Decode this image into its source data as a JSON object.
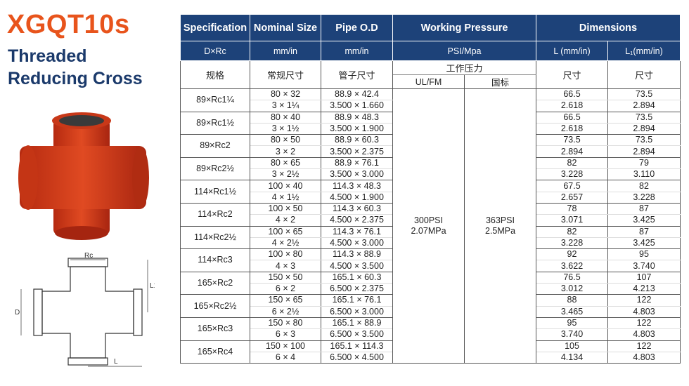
{
  "title": "XGQT10s",
  "subtitle_line1": "Threaded",
  "subtitle_line2": "Reducing Cross",
  "colors": {
    "accent": "#e8541c",
    "navy": "#1d4279",
    "product": "#d63a1a"
  },
  "drawing_labels": {
    "rc": "Rc",
    "l1": "L1",
    "d": "D",
    "l": "L"
  },
  "header": {
    "specification": "Specification",
    "nominal": "Nominal Size",
    "pipe": "Pipe O.D",
    "pressure": "Working Pressure",
    "dimensions": "Dimensions",
    "spec_unit": "D×Rc",
    "nominal_unit": "mm/in",
    "pipe_unit": "mm/in",
    "pressure_unit": "PSI/Mpa",
    "l_unit": "L (mm/in)",
    "l1_unit": "L₁(mm/in)",
    "spec_cn": "规格",
    "nominal_cn": "常规尺寸",
    "pipe_cn": "管子尺寸",
    "pressure_cn": "工作压力",
    "ulfm": "UL/FM",
    "guobiao": "国标",
    "l_cn": "尺寸",
    "l1_cn": "尺寸"
  },
  "pressure": {
    "ul_psi": "300PSI",
    "ul_mpa": "2.07MPa",
    "gb_psi": "363PSI",
    "gb_mpa": "2.5MPa"
  },
  "rows": [
    {
      "spec": "89×Rc1¼",
      "nom_mm": "80 × 32",
      "nom_in": "3 × 1¼",
      "od_mm": "88.9 × 42.4",
      "od_in": "3.500 × 1.660",
      "l_mm": "66.5",
      "l_in": "2.618",
      "l1_mm": "73.5",
      "l1_in": "2.894"
    },
    {
      "spec": "89×Rc1½",
      "nom_mm": "80 × 40",
      "nom_in": "3 × 1½",
      "od_mm": "88.9 × 48.3",
      "od_in": "3.500 × 1.900",
      "l_mm": "66.5",
      "l_in": "2.618",
      "l1_mm": "73.5",
      "l1_in": "2.894"
    },
    {
      "spec": "89×Rc2",
      "nom_mm": "80 × 50",
      "nom_in": "3 × 2",
      "od_mm": "88.9 × 60.3",
      "od_in": "3.500 × 2.375",
      "l_mm": "73.5",
      "l_in": "2.894",
      "l1_mm": "73.5",
      "l1_in": "2.894"
    },
    {
      "spec": "89×Rc2½",
      "nom_mm": "80 × 65",
      "nom_in": "3 × 2½",
      "od_mm": "88.9 × 76.1",
      "od_in": "3.500 × 3.000",
      "l_mm": "82",
      "l_in": "3.228",
      "l1_mm": "79",
      "l1_in": "3.110"
    },
    {
      "spec": "114×Rc1½",
      "nom_mm": "100 × 40",
      "nom_in": "4 × 1½",
      "od_mm": "114.3 × 48.3",
      "od_in": "4.500 × 1.900",
      "l_mm": "67.5",
      "l_in": "2.657",
      "l1_mm": "82",
      "l1_in": "3.228"
    },
    {
      "spec": "114×Rc2",
      "nom_mm": "100 × 50",
      "nom_in": "4 × 2",
      "od_mm": "114.3 × 60.3",
      "od_in": "4.500 × 2.375",
      "l_mm": "78",
      "l_in": "3.071",
      "l1_mm": "87",
      "l1_in": "3.425"
    },
    {
      "spec": "114×Rc2½",
      "nom_mm": "100 × 65",
      "nom_in": "4 × 2½",
      "od_mm": "114.3 × 76.1",
      "od_in": "4.500 × 3.000",
      "l_mm": "82",
      "l_in": "3.228",
      "l1_mm": "87",
      "l1_in": "3.425"
    },
    {
      "spec": "114×Rc3",
      "nom_mm": "100 × 80",
      "nom_in": "4 × 3",
      "od_mm": "114.3 × 88.9",
      "od_in": "4.500 × 3.500",
      "l_mm": "92",
      "l_in": "3.622",
      "l1_mm": "95",
      "l1_in": "3.740"
    },
    {
      "spec": "165×Rc2",
      "nom_mm": "150 × 50",
      "nom_in": "6 × 2",
      "od_mm": "165.1 × 60.3",
      "od_in": "6.500 × 2.375",
      "l_mm": "76.5",
      "l_in": "3.012",
      "l1_mm": "107",
      "l1_in": "4.213"
    },
    {
      "spec": "165×Rc2½",
      "nom_mm": "150 × 65",
      "nom_in": "6 × 2½",
      "od_mm": "165.1 × 76.1",
      "od_in": "6.500 × 3.000",
      "l_mm": "88",
      "l_in": "3.465",
      "l1_mm": "122",
      "l1_in": "4.803"
    },
    {
      "spec": "165×Rc3",
      "nom_mm": "150 × 80",
      "nom_in": "6 × 3",
      "od_mm": "165.1 × 88.9",
      "od_in": "6.500 × 3.500",
      "l_mm": "95",
      "l_in": "3.740",
      "l1_mm": "122",
      "l1_in": "4.803"
    },
    {
      "spec": "165×Rc4",
      "nom_mm": "150 × 100",
      "nom_in": "6 × 4",
      "od_mm": "165.1 × 114.3",
      "od_in": "6.500 × 4.500",
      "l_mm": "105",
      "l_in": "4.134",
      "l1_mm": "122",
      "l1_in": "4.803"
    }
  ]
}
